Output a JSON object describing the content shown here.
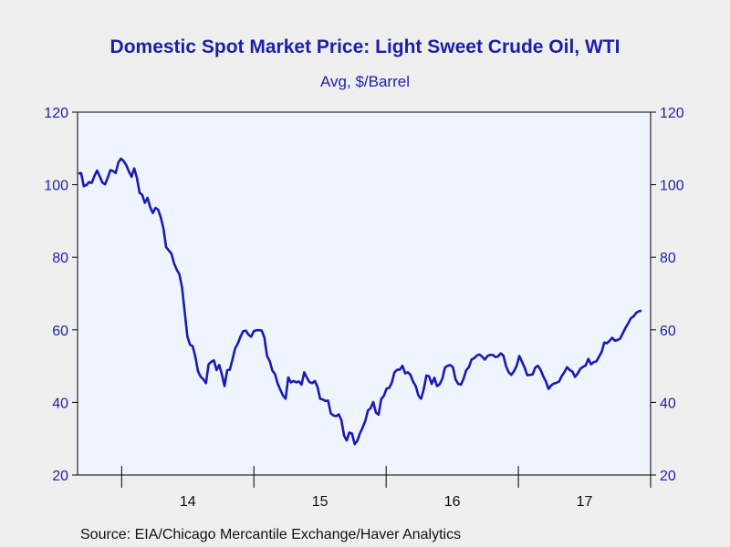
{
  "chart_data": {
    "type": "line",
    "title": "Domestic Spot Market Price: Light Sweet Crude Oil, WTI",
    "subtitle": "Avg, $/Barrel",
    "source": "Source:  EIA/Chicago Mercantile Exchange/Haver Analytics",
    "xlabel": "",
    "ylabel": "",
    "ylim": [
      20,
      120
    ],
    "yticks": [
      20,
      40,
      60,
      80,
      100,
      120
    ],
    "year_labels": [
      "14",
      "15",
      "16",
      "17"
    ],
    "x_start": "2013-09",
    "x_end": "2018-01",
    "frequency": "weekly",
    "grid": false,
    "colors": {
      "line": "#1a1ab4",
      "axis_text": "#1e1ea8",
      "plot_bg": "#eef5ff"
    },
    "series": [
      {
        "values": [
          103.1,
          103.2,
          99.6,
          99.9,
          100.7,
          100.5,
          102.4,
          103.9,
          102.3,
          100.6,
          100.1,
          101.9,
          104.0,
          103.8,
          103.2,
          106.1,
          107.2,
          106.5,
          105.4,
          103.6,
          102.2,
          104.5,
          101.9,
          97.8,
          97.2,
          95.0,
          96.4,
          93.8,
          92.2,
          93.6,
          93.1,
          91.0,
          87.9,
          82.8,
          81.9,
          81.0,
          78.3,
          76.6,
          75.3,
          71.7,
          64.9,
          58.2,
          55.9,
          55.5,
          52.6,
          48.6,
          47.1,
          46.4,
          45.3,
          50.5,
          51.2,
          51.6,
          48.9,
          50.3,
          47.7,
          44.5,
          48.9,
          49.0,
          51.9,
          54.9,
          56.2,
          58.1,
          59.6,
          59.8,
          58.7,
          58.1,
          59.6,
          59.9,
          59.9,
          59.8,
          57.9,
          52.8,
          51.4,
          48.8,
          47.8,
          45.2,
          43.5,
          41.9,
          41.0,
          46.9,
          45.5,
          45.9,
          45.5,
          45.8,
          44.9,
          48.3,
          46.8,
          45.6,
          45.3,
          45.9,
          44.3,
          41.0,
          40.8,
          40.4,
          40.5,
          37.0,
          36.4,
          36.2,
          36.7,
          35.1,
          30.9,
          29.5,
          31.7,
          31.4,
          28.5,
          29.4,
          31.5,
          33.1,
          34.9,
          37.8,
          38.4,
          40.1,
          37.2,
          36.6,
          40.9,
          41.8,
          43.8,
          44.0,
          45.5,
          48.3,
          49.0,
          49.0,
          50.1,
          48.0,
          48.3,
          47.6,
          45.7,
          44.5,
          41.9,
          41.0,
          43.6,
          47.4,
          47.2,
          45.1,
          46.8,
          44.5,
          45.0,
          46.5,
          49.6,
          50.1,
          50.3,
          49.7,
          46.3,
          45.1,
          44.9,
          46.5,
          48.9,
          49.7,
          51.8,
          52.2,
          52.9,
          53.2,
          52.6,
          51.8,
          52.8,
          53.1,
          53.1,
          52.5,
          52.7,
          53.5,
          52.9,
          50.0,
          48.3,
          47.6,
          48.6,
          50.1,
          52.8,
          51.2,
          49.6,
          47.5,
          47.6,
          47.7,
          49.6,
          50.1,
          49.0,
          47.2,
          45.8,
          43.7,
          44.7,
          45.2,
          45.4,
          45.8,
          47.3,
          48.4,
          49.7,
          48.9,
          48.5,
          47.0,
          48.0,
          49.3,
          49.8,
          50.2,
          52.0,
          50.5,
          51.1,
          51.3,
          52.6,
          53.9,
          56.5,
          56.3,
          57.0,
          57.8,
          57.0,
          57.2,
          57.6,
          59.1,
          60.6,
          61.8,
          63.2,
          63.7,
          64.7,
          65.1,
          65.3
        ]
      }
    ]
  }
}
